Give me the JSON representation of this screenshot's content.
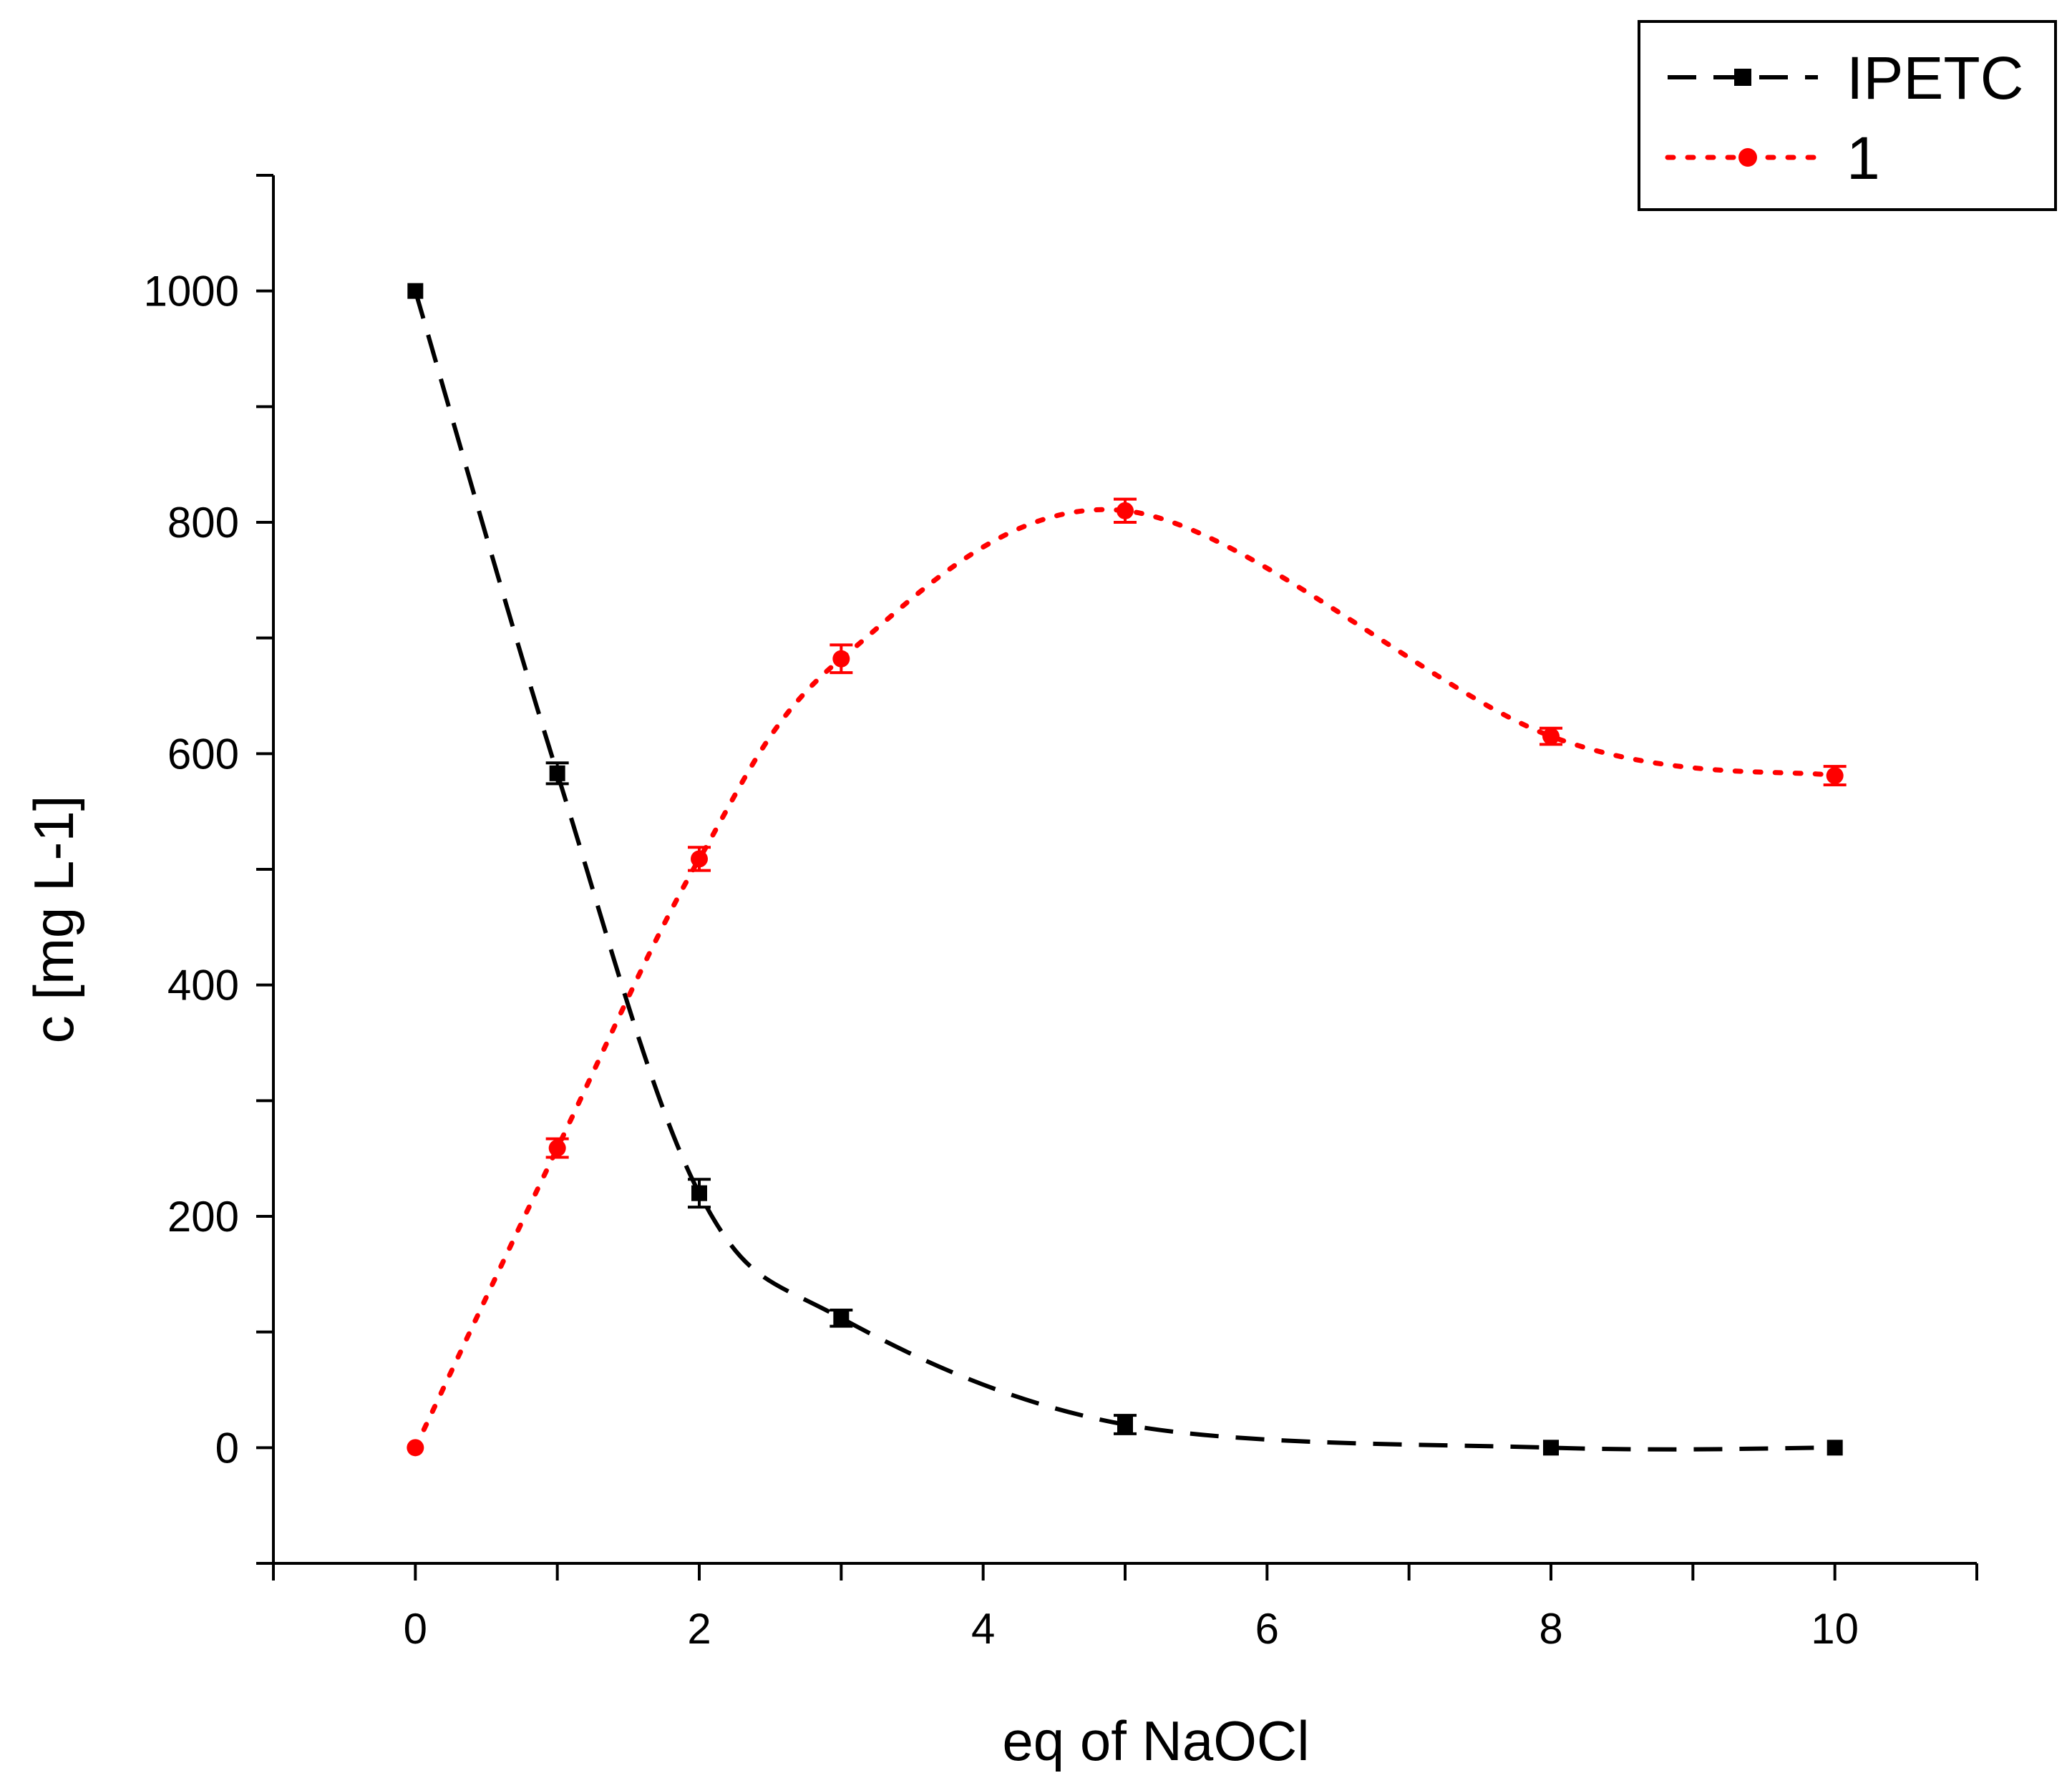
{
  "chart_data": {
    "type": "line",
    "title": "",
    "xlabel": "eq of NaOCl",
    "ylabel": "c [mg L-1]",
    "xlim": [
      -1,
      11
    ],
    "ylim": [
      -100,
      1100
    ],
    "x_ticks": [
      0,
      2,
      4,
      6,
      8,
      10
    ],
    "x_tick_labels": [
      "0",
      "2",
      "4",
      "6",
      "8",
      "10"
    ],
    "y_ticks": [
      0,
      200,
      400,
      600,
      800,
      1000
    ],
    "y_tick_labels": [
      "0",
      "200",
      "400",
      "600",
      "800",
      "1000"
    ],
    "grid": false,
    "legend_position": "top-right",
    "series": [
      {
        "name": "IPETC",
        "color": "#000000",
        "line_style": "dashed",
        "marker": "square",
        "x": [
          0,
          1,
          2,
          3,
          5,
          8,
          10
        ],
        "y": [
          1000,
          583,
          220,
          112,
          20,
          0,
          0
        ],
        "error": [
          0,
          9,
          12,
          7,
          8,
          0,
          0
        ]
      },
      {
        "name": "1",
        "color": "#ff0000",
        "line_style": "dotted",
        "marker": "circle",
        "x": [
          0,
          1,
          2,
          3,
          5,
          8,
          10
        ],
        "y": [
          0,
          259,
          509,
          682,
          810,
          615,
          581
        ],
        "error": [
          0,
          8,
          10,
          12,
          10,
          7,
          8
        ]
      }
    ]
  }
}
